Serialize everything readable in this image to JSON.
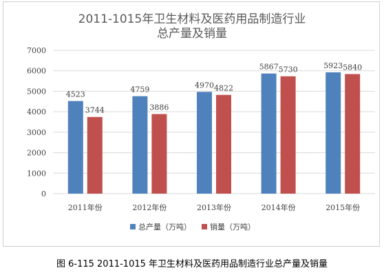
{
  "caption": "图 6-115 2011-1015 年卫生材料及医药用品制造行业总产量及销量",
  "chart_data": {
    "type": "bar",
    "title_line1": "2011-1015年卫生材料及医药用品制造行业",
    "title_line2": "总产量及销量",
    "categories": [
      "2011年份",
      "2012年份",
      "2013年份",
      "2014年份",
      "2015年份"
    ],
    "series": [
      {
        "name": "总产量（万吨）",
        "color": "#4f81bd",
        "values": [
          4523,
          4759,
          4970,
          5867,
          5923
        ]
      },
      {
        "name": "销量（万吨）",
        "color": "#c0504d",
        "values": [
          3744,
          3886,
          4822,
          5730,
          5840
        ]
      }
    ],
    "ylim": [
      0,
      7000
    ],
    "yticks": [
      0,
      1000,
      2000,
      3000,
      4000,
      5000,
      6000,
      7000
    ],
    "grid": true,
    "legend_position": "bottom"
  }
}
